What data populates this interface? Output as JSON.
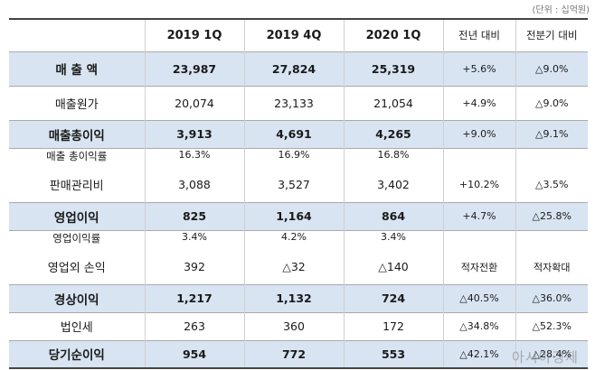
{
  "unit_note": "(단위 : 십억원)",
  "columns": [
    "",
    "2019 1Q",
    "2019 4Q",
    "2020 1Q",
    "전년 대비",
    "전분기 대비"
  ],
  "rows": [
    {
      "label": "매 출 액",
      "v1": "23,987",
      "v2": "27,824",
      "v3": "25,319",
      "yoy": "+5.6%",
      "qoq": "△9.0%"
    },
    {
      "label": "매출원가",
      "v1": "20,074",
      "v2": "23,133",
      "v3": "21,054",
      "yoy": "+4.9%",
      "qoq": "△9.0%"
    },
    {
      "label": "매출총이익",
      "v1": "3,913",
      "v2": "4,691",
      "v3": "4,265",
      "yoy": "+9.0%",
      "qoq": "△9.1%"
    },
    {
      "label": "매출 총이익률",
      "v1": "16.3%",
      "v2": "16.9%",
      "v3": "16.8%",
      "yoy": "",
      "qoq": ""
    },
    {
      "label": "판매관리비",
      "v1": "3,088",
      "v2": "3,527",
      "v3": "3,402",
      "yoy": "+10.2%",
      "qoq": "△3.5%"
    },
    {
      "label": "영업이익",
      "v1": "825",
      "v2": "1,164",
      "v3": "864",
      "yoy": "+4.7%",
      "qoq": "△25.8%"
    },
    {
      "label": "영업이익률",
      "v1": "3.4%",
      "v2": "4.2%",
      "v3": "3.4%",
      "yoy": "",
      "qoq": ""
    },
    {
      "label": "영업외 손익",
      "v1": "392",
      "v2": "△32",
      "v3": "△140",
      "yoy": "적자전환",
      "qoq": "적자확대"
    },
    {
      "label": "경상이익",
      "v1": "1,217",
      "v2": "1,132",
      "v3": "724",
      "yoy": "△40.5%",
      "qoq": "△36.0%"
    },
    {
      "label": "법인세",
      "v1": "263",
      "v2": "360",
      "v3": "172",
      "yoy": "△34.8%",
      "qoq": "△52.3%"
    },
    {
      "label": "당기순이익",
      "v1": "954",
      "v2": "772",
      "v3": "553",
      "yoy": "△42.1%",
      "qoq": "△28.4%"
    }
  ],
  "watermark": "아시아경제"
}
